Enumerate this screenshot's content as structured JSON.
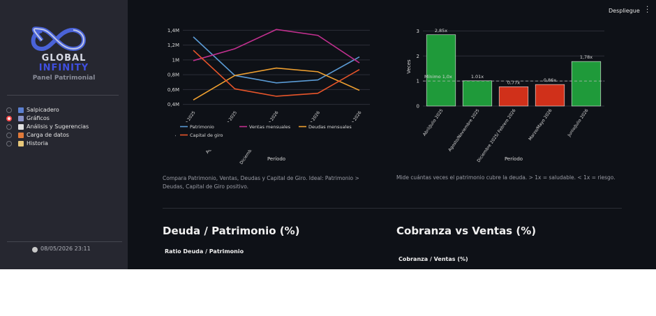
{
  "sidebar": {
    "logo_title": "GLOBAL",
    "logo_subtitle": "INFINITY",
    "app_name": "Panel Patrimonial",
    "nav": [
      "Salpicadero",
      "Gráficos",
      "Análisis y Sugerencias",
      "Carga de datos",
      "Historia"
    ],
    "selected": 1,
    "timestamp": "08/05/2026 23:11"
  },
  "header": {
    "deploy": "Despliegue"
  },
  "captions": [
    "Compara Patrimonio, Ventas, Deudas y Capital de Giro. Ideal: Patrimonio > Deudas, Capital de Giro positivo.",
    "Mide cuántas veces el patrimonio cubre la deuda. > 1x = saludable. < 1x = riesgo."
  ],
  "sections": [
    {
      "title": "Deuda / Patrimonio (%)",
      "subtitle": "Ratio Deuda / Patrimonio"
    },
    {
      "title": "Cobranza vs Ventas (%)",
      "subtitle": "Cobranza / Ventas (%)"
    }
  ],
  "chart_data": [
    {
      "type": "line",
      "x_label": "Período",
      "categories": [
        "Abril/Julio 2025",
        "Agosto/Noviembre 2025",
        "Diciembre 2025/ Febrero 2026",
        "Marzo/Mayo 2026",
        "Junio/Julio 2026"
      ],
      "ylim": [
        350000,
        1450000
      ],
      "yticks": [
        {
          "value": 400000,
          "label": "0,4M"
        },
        {
          "value": 600000,
          "label": "0,6M"
        },
        {
          "value": 800000,
          "label": "0,8M"
        },
        {
          "value": 1000000,
          "label": "1M"
        },
        {
          "value": 1200000,
          "label": "1,2M"
        },
        {
          "value": 1400000,
          "label": "1,4M"
        }
      ],
      "grid": true,
      "series": [
        {
          "name": "Patrimonio",
          "color": "#5b9bd5",
          "values": [
            1310000,
            790000,
            690000,
            730000,
            1040000
          ]
        },
        {
          "name": "Ventas mensuales",
          "color": "#c2308f",
          "values": [
            990000,
            1150000,
            1410000,
            1330000,
            960000
          ]
        },
        {
          "name": "Deudas mensuales",
          "color": "#f0a030",
          "values": [
            460000,
            790000,
            890000,
            840000,
            590000
          ]
        },
        {
          "name": "Capital de giro",
          "color": "#e8552a",
          "values": [
            1130000,
            610000,
            510000,
            550000,
            870000
          ]
        }
      ]
    },
    {
      "type": "bar",
      "x_label": "Período",
      "y_label": "Veces",
      "categories": [
        "Abril/Julio 2025",
        "Agosto/Noviembre 2025",
        "Diciembre 2025/ Febrero 2026",
        "Marzo/Mayo 2026",
        "Junio/Julio 2026"
      ],
      "values": [
        2.85,
        1.01,
        0.77,
        0.86,
        1.78
      ],
      "value_labels": [
        "2,85x",
        "1.01x",
        "0,77x",
        "0,86x",
        "1,78x"
      ],
      "colors": [
        "#1f9a3a",
        "#1f9a3a",
        "#d0301a",
        "#d0301a",
        "#1f9a3a"
      ],
      "ylim": [
        0,
        3.15
      ],
      "yticks": [
        0,
        1,
        2,
        3
      ],
      "grid": true,
      "threshold": 1,
      "threshold_label": "Mínimo 1,0x"
    }
  ]
}
